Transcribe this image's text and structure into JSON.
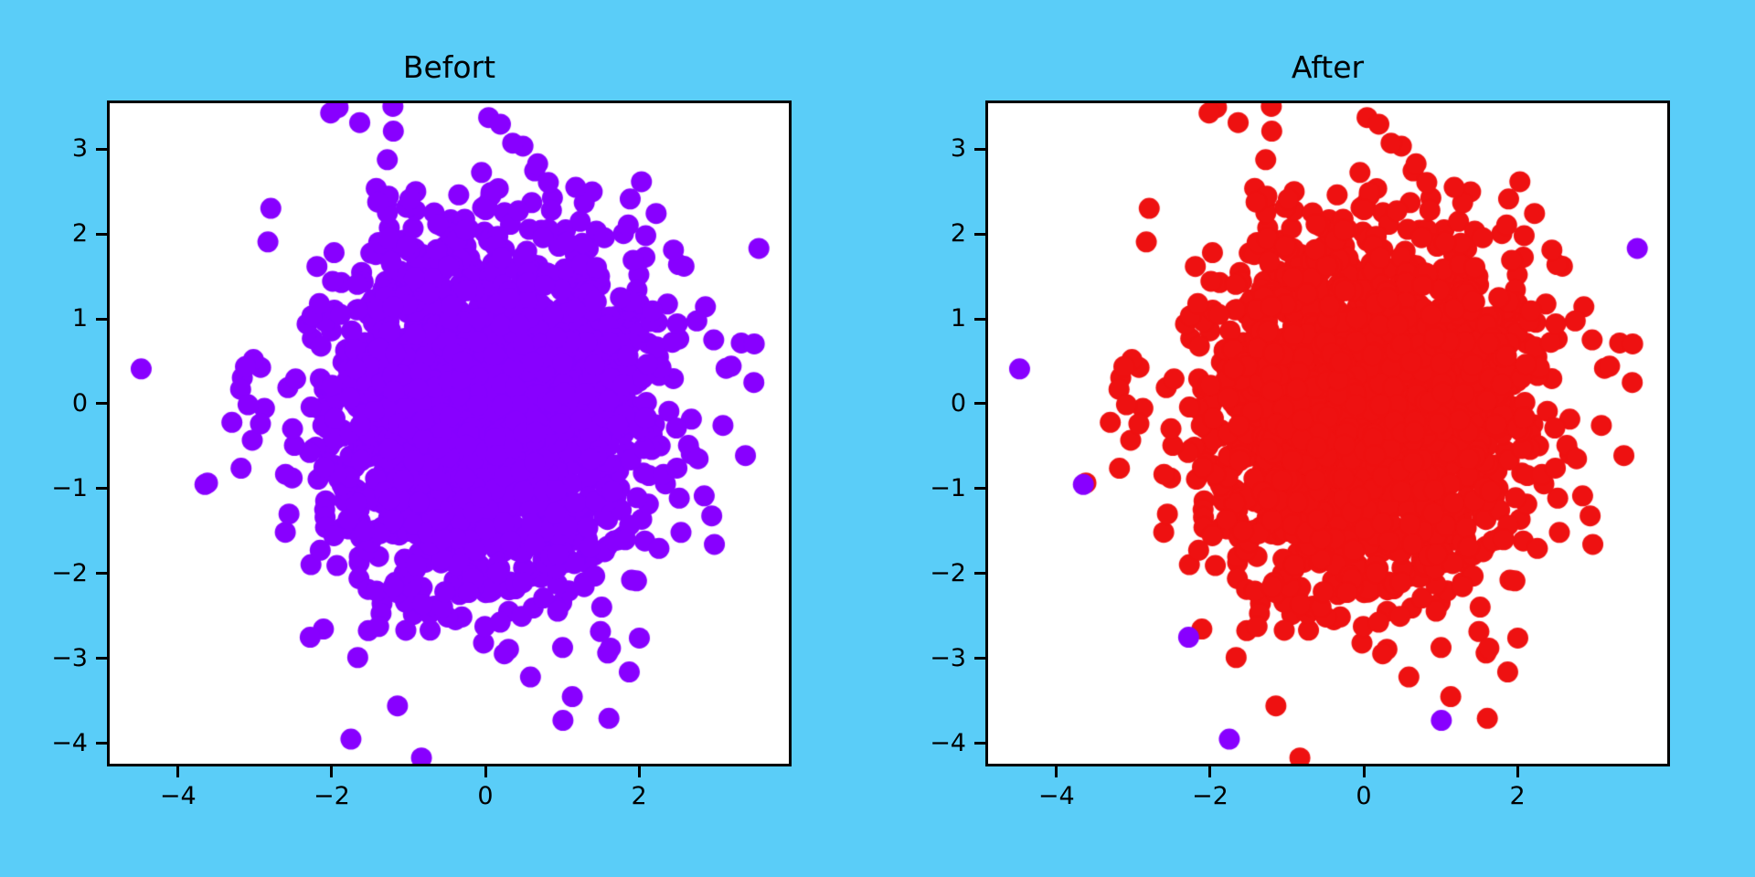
{
  "chart_data": {
    "type": "scatter",
    "description": "Two side-by-side scatter subplots showing a dense gaussian point cloud; left shows all points in purple, right shows the same cloud in red with six purple outliers highlighted",
    "figure_background": "#5acdf8",
    "axes_background": "#ffffff",
    "frame_color": "#000000",
    "text_color": "#000000",
    "marker_radius_px": 11.5,
    "xlim": [
      -4.89,
      3.95
    ],
    "ylim": [
      -4.24,
      3.54
    ],
    "grid": false,
    "legend": null,
    "x_axis": {
      "values": [
        -4,
        -2,
        0,
        2
      ],
      "labels": [
        "−4",
        "−2",
        "0",
        "2"
      ]
    },
    "y_axis": {
      "values": [
        3,
        2,
        1,
        0,
        -1,
        -2,
        -3,
        -4
      ],
      "labels": [
        "3",
        "2",
        "1",
        "0",
        "−1",
        "−2",
        "−3",
        "−4"
      ]
    },
    "cluster": {
      "n": 2200,
      "mean": [
        0.05,
        -0.08
      ],
      "std": [
        1.02,
        1.08
      ],
      "seed": 7
    },
    "outliers": [
      [
        -4.48,
        0.41
      ],
      [
        -3.65,
        -0.95
      ],
      [
        -2.28,
        -2.75
      ],
      [
        -1.75,
        -3.95
      ],
      [
        1.01,
        -3.73
      ],
      [
        3.56,
        1.83
      ]
    ],
    "subplots": [
      {
        "title": "Befort",
        "cluster_color": "#8800ff",
        "outlier_color": "#8800ff"
      },
      {
        "title": "After",
        "cluster_color": "#ee1111",
        "outlier_color": "#8800ff"
      }
    ]
  }
}
